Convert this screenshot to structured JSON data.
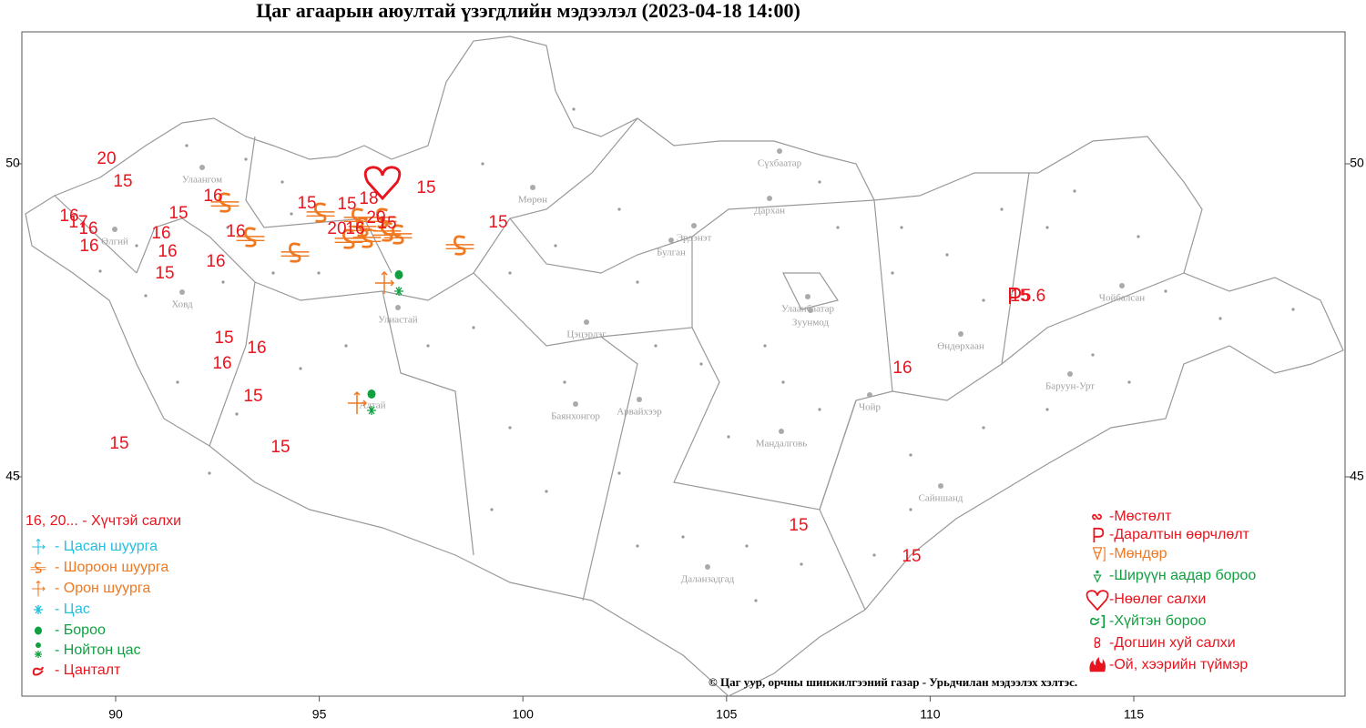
{
  "title": "Цаг агаарын аюултай үзэгдлийн мэдээлэл (2023-04-18 14:00)",
  "axes": {
    "x_ticks": [
      90,
      95,
      100,
      105,
      110,
      115
    ],
    "y_ticks": [
      45,
      50
    ]
  },
  "cities": [
    "Улаангом",
    "Өлгий",
    "Ховд",
    "Улиастай",
    "Мөрөн",
    "Цэцэрлэг",
    "Баянхонгор",
    "Арвайхээр",
    "Булган",
    "Эрдэнэт",
    "Сүхбаатар",
    "Дархан",
    "Улаанбаатар",
    "Зуунмод",
    "Өндөрхаан",
    "Чойбалсан",
    "Баруун-Урт",
    "Чойр",
    "Мандалговь",
    "Сайншанд",
    "Даланзадгад",
    "Алтай"
  ],
  "wind_speeds": [
    20,
    15,
    16,
    17,
    16,
    16,
    16,
    15,
    16,
    15,
    16,
    16,
    16,
    15,
    15,
    18,
    20,
    16,
    20,
    15,
    15,
    15,
    15,
    16,
    15,
    15,
    16,
    15,
    16,
    15,
    15,
    15
  ],
  "pressure_change": "5.6",
  "legend_left": [
    "16, 20... - Хүчтэй салхи",
    "- Цасан шуурга",
    "- Шороон шуурга",
    "- Орон шуурга",
    "- Цас",
    "- Бороо",
    "- Нойтон цас",
    "- Цанталт"
  ],
  "legend_right": [
    "-Мөстөлт",
    "-Даралтын өөрчлөлт",
    "-Мөндөр",
    "-Ширүүн аадар бороо",
    "-Нөөлөг салхи",
    "-Хүйтэн бороо",
    "-Догшин хуй салхи",
    "-Ой, хээрийн түймэр"
  ],
  "copyright": "© Цаг уур, орчны шинжилгээний газар - Урьдчилан мэдээлэх хэлтэс."
}
